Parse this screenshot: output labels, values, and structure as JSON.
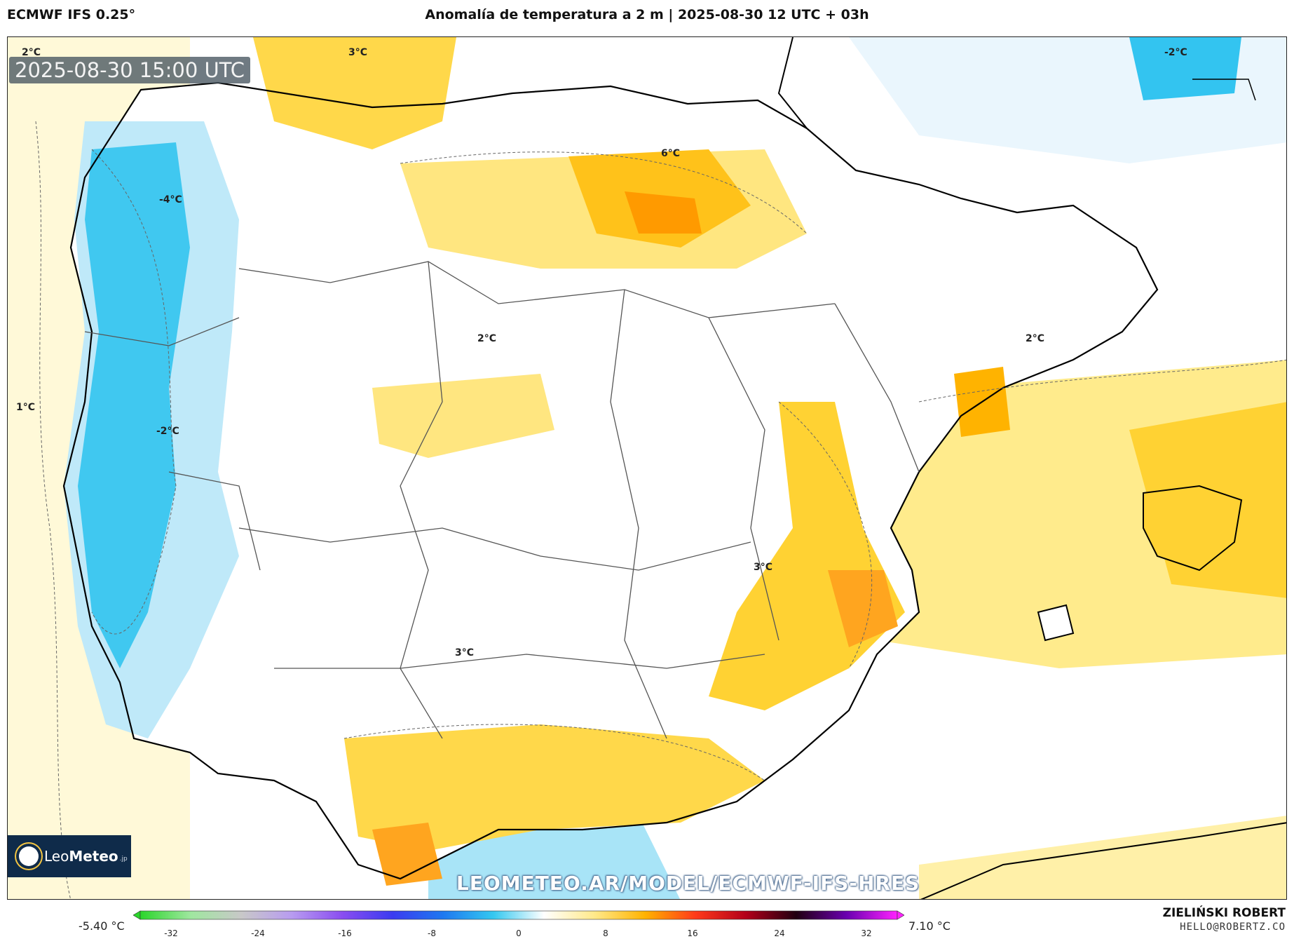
{
  "header": {
    "model": "ECMWF IFS 0.25°",
    "title": "Anomalía de temperatura a 2 m | 2025-08-30 12 UTC + 03h"
  },
  "map": {
    "valid_time": "2025-08-30 15:00 UTC",
    "contour_labels": [
      "2°C",
      "3°C",
      "-2°C",
      "6°C",
      "-4°C",
      "2°C",
      "2°C",
      "1°C",
      "-2°C",
      "3°C",
      "3°C"
    ],
    "watermark": "LEOMETEO.AR/MODEL/ECMWF-IFS-HRES",
    "logo": {
      "name_light": "Leo",
      "name_bold": "Meteo",
      "suffix": ".jp"
    }
  },
  "colorbar": {
    "min_label": "-5.40 °C",
    "max_label": "7.10 °C",
    "ticks": [
      "-32",
      "-24",
      "-16",
      "-8",
      "0",
      "8",
      "16",
      "24",
      "32"
    ],
    "colors": [
      "#2bd62b",
      "#9fe79f",
      "#c8c8c8",
      "#b89cf0",
      "#8a4df0",
      "#3b3bf0",
      "#1e78f0",
      "#34c8f0",
      "#ffffff",
      "#ffe98a",
      "#ffb300",
      "#ff3a1a",
      "#b3001a",
      "#200010",
      "#6a00b0",
      "#ff22ff"
    ]
  },
  "footer": {
    "author": "ZIELIŃSKI ROBERT",
    "email": "HELLO@ROBERTZ.CO"
  }
}
